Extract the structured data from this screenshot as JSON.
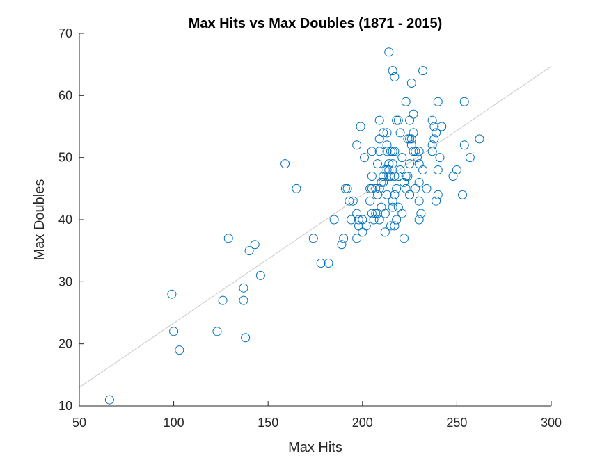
{
  "chart_data": {
    "type": "scatter",
    "title": "Max Hits vs Max Doubles (1871 - 2015)",
    "xlabel": "Max Hits",
    "ylabel": "Max Doubles",
    "xlim": [
      50,
      300
    ],
    "ylim": [
      10,
      70
    ],
    "xticks": [
      50,
      100,
      150,
      200,
      250,
      300
    ],
    "yticks": [
      10,
      20,
      30,
      40,
      50,
      60,
      70
    ],
    "grid": false,
    "colors": {
      "marker": "#0072BD",
      "fit_line": "#C8C8C8"
    },
    "fit_line": {
      "x": [
        50,
        300
      ],
      "y": [
        13.0,
        64.7
      ]
    },
    "points": [
      [
        66,
        11
      ],
      [
        99,
        28
      ],
      [
        100,
        22
      ],
      [
        103,
        19
      ],
      [
        123,
        22
      ],
      [
        126,
        27
      ],
      [
        129,
        37
      ],
      [
        137,
        29
      ],
      [
        137,
        27
      ],
      [
        138,
        21
      ],
      [
        140,
        35
      ],
      [
        143,
        36
      ],
      [
        146,
        31
      ],
      [
        159,
        49
      ],
      [
        165,
        45
      ],
      [
        174,
        37
      ],
      [
        178,
        33
      ],
      [
        182,
        33
      ],
      [
        185,
        40
      ],
      [
        189,
        36
      ],
      [
        190,
        37
      ],
      [
        191,
        45
      ],
      [
        192,
        45
      ],
      [
        193,
        43
      ],
      [
        194,
        40
      ],
      [
        195,
        43
      ],
      [
        197,
        52
      ],
      [
        197,
        41
      ],
      [
        197,
        37
      ],
      [
        198,
        40
      ],
      [
        198,
        39
      ],
      [
        199,
        55
      ],
      [
        200,
        40
      ],
      [
        200,
        38
      ],
      [
        201,
        50
      ],
      [
        202,
        39
      ],
      [
        204,
        43
      ],
      [
        204,
        45
      ],
      [
        205,
        51
      ],
      [
        205,
        47
      ],
      [
        205,
        45
      ],
      [
        205,
        41
      ],
      [
        206,
        40
      ],
      [
        207,
        45
      ],
      [
        207,
        41
      ],
      [
        208,
        49
      ],
      [
        208,
        44
      ],
      [
        208,
        41
      ],
      [
        209,
        56
      ],
      [
        209,
        53
      ],
      [
        209,
        51
      ],
      [
        209,
        45
      ],
      [
        209,
        40
      ],
      [
        210,
        46
      ],
      [
        210,
        42
      ],
      [
        211,
        54
      ],
      [
        211,
        47
      ],
      [
        211,
        46
      ],
      [
        212,
        48
      ],
      [
        212,
        41
      ],
      [
        212,
        38
      ],
      [
        213,
        54
      ],
      [
        213,
        52
      ],
      [
        213,
        51
      ],
      [
        213,
        48
      ],
      [
        213,
        44
      ],
      [
        214,
        67
      ],
      [
        214,
        49
      ],
      [
        214,
        48
      ],
      [
        214,
        47
      ],
      [
        215,
        51
      ],
      [
        215,
        47
      ],
      [
        215,
        39
      ],
      [
        216,
        64
      ],
      [
        216,
        51
      ],
      [
        216,
        49
      ],
      [
        216,
        43
      ],
      [
        216,
        42
      ],
      [
        217,
        63
      ],
      [
        217,
        51
      ],
      [
        217,
        47
      ],
      [
        217,
        44
      ],
      [
        217,
        39
      ],
      [
        218,
        56
      ],
      [
        218,
        45
      ],
      [
        218,
        40
      ],
      [
        219,
        56
      ],
      [
        219,
        47
      ],
      [
        219,
        42
      ],
      [
        220,
        54
      ],
      [
        220,
        48
      ],
      [
        221,
        50
      ],
      [
        221,
        41
      ],
      [
        222,
        46
      ],
      [
        222,
        37
      ],
      [
        223,
        59
      ],
      [
        223,
        47
      ],
      [
        223,
        45
      ],
      [
        224,
        53
      ],
      [
        224,
        47
      ],
      [
        225,
        56
      ],
      [
        225,
        53
      ],
      [
        225,
        49
      ],
      [
        225,
        44
      ],
      [
        226,
        62
      ],
      [
        226,
        52
      ],
      [
        226,
        53
      ],
      [
        227,
        57
      ],
      [
        227,
        54
      ],
      [
        227,
        51
      ],
      [
        228,
        51
      ],
      [
        228,
        45
      ],
      [
        229,
        50
      ],
      [
        230,
        51
      ],
      [
        230,
        49
      ],
      [
        230,
        46
      ],
      [
        230,
        43
      ],
      [
        230,
        40
      ],
      [
        231,
        41
      ],
      [
        232,
        64
      ],
      [
        232,
        48
      ],
      [
        234,
        45
      ],
      [
        237,
        56
      ],
      [
        237,
        52
      ],
      [
        237,
        51
      ],
      [
        238,
        55
      ],
      [
        238,
        53
      ],
      [
        239,
        54
      ],
      [
        239,
        43
      ],
      [
        240,
        59
      ],
      [
        240,
        48
      ],
      [
        240,
        44
      ],
      [
        241,
        50
      ],
      [
        242,
        55
      ],
      [
        248,
        47
      ],
      [
        250,
        48
      ],
      [
        253,
        44
      ],
      [
        254,
        59
      ],
      [
        254,
        52
      ],
      [
        257,
        50
      ],
      [
        262,
        53
      ]
    ]
  }
}
